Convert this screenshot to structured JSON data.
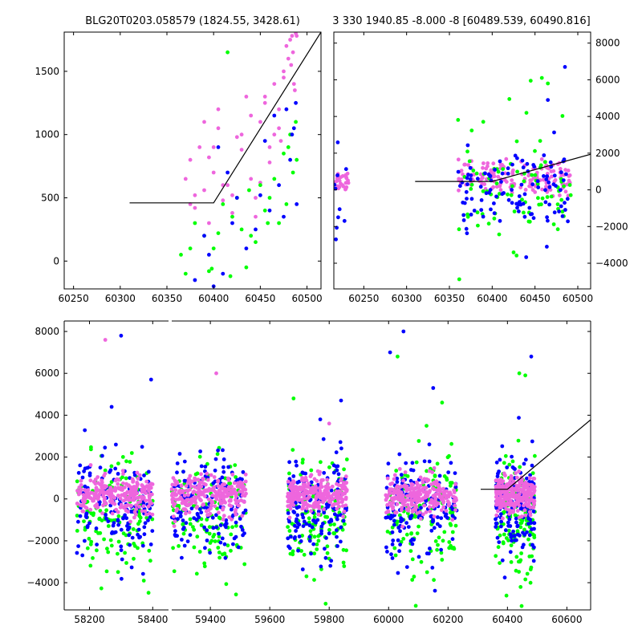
{
  "titles": {
    "left": "BLG20T0203.058579 (1824.55, 3428.61)",
    "right": "3 330 1940.85 -8.000 -8 [60489.539, 60490.816]"
  },
  "colors": {
    "series_green": "#00ff00",
    "series_blue": "#0000ff",
    "series_magenta": "#ee66dd",
    "model_line": "#000000"
  },
  "chart_data": [
    {
      "type": "scatter",
      "panel": "top-left",
      "xlim": [
        60240,
        60515
      ],
      "ylim": [
        -220,
        1810
      ],
      "x_ticks": [
        "60250",
        "60300",
        "60350",
        "60400",
        "60450",
        "60500"
      ],
      "y_ticks": [
        "0",
        "500",
        "1000",
        "1500"
      ],
      "y_axis_side": "left",
      "series": [
        {
          "color": "magenta",
          "x": [
            60370,
            60375,
            60380,
            60385,
            60390,
            60395,
            60400,
            60405,
            60410,
            60420,
            60430,
            60440,
            60445,
            60450,
            60455,
            60460,
            60465,
            60470,
            60475,
            60478,
            60480,
            60482,
            60484,
            60486,
            60488,
            60470,
            60460,
            60450,
            60440,
            60430,
            60420,
            60410,
            60400,
            60390,
            60380,
            60375,
            60395,
            60405,
            60415,
            60425,
            60435,
            60445,
            60455,
            60465,
            60475,
            60485,
            60487,
            60489,
            60483,
            60472
          ],
          "y": [
            650,
            800,
            420,
            900,
            560,
            300,
            700,
            1050,
            480,
            380,
            1000,
            650,
            350,
            1100,
            1300,
            900,
            1400,
            1200,
            1500,
            1700,
            1600,
            1750,
            1780,
            1400,
            1800,
            1050,
            780,
            620,
            1150,
            880,
            520,
            600,
            900,
            1100,
            520,
            450,
            820,
            1200,
            600,
            980,
            1300,
            500,
            1250,
            1000,
            1450,
            1650,
            1350,
            1780,
            1550,
            950
          ]
        },
        {
          "color": "green",
          "x": [
            60365,
            60370,
            60380,
            60390,
            60400,
            60410,
            60420,
            60430,
            60440,
            60450,
            60460,
            60470,
            60480,
            60485,
            60488,
            60475,
            60455,
            60435,
            60415,
            60395,
            60375,
            60405,
            60425,
            60445,
            60465,
            60482,
            60489,
            60478,
            60458,
            60438,
            60418,
            60398
          ],
          "y": [
            50,
            -100,
            300,
            200,
            100,
            450,
            350,
            250,
            200,
            600,
            500,
            300,
            900,
            700,
            1100,
            850,
            400,
            -50,
            1650,
            -80,
            100,
            220,
            500,
            150,
            650,
            1000,
            800,
            450,
            300,
            560,
            -120,
            -60
          ]
        },
        {
          "color": "blue",
          "x": [
            60380,
            60395,
            60405,
            60420,
            60435,
            60450,
            60460,
            60470,
            60478,
            60484,
            60488,
            60489,
            60465,
            60445,
            60425,
            60410,
            60400,
            60390,
            60415,
            60455,
            60475,
            60482,
            60486
          ],
          "y": [
            -150,
            50,
            900,
            300,
            100,
            520,
            400,
            600,
            1200,
            1000,
            1250,
            450,
            1150,
            250,
            500,
            -100,
            -200,
            200,
            700,
            950,
            350,
            800,
            1050
          ]
        }
      ],
      "model": {
        "x": [
          60310,
          60400,
          60520
        ],
        "y": [
          460,
          460,
          1810
        ]
      }
    },
    {
      "type": "scatter",
      "panel": "top-right",
      "xlim": [
        60215,
        60515
      ],
      "ylim": [
        -5400,
        8600
      ],
      "x_ticks": [
        "60250",
        "60300",
        "60350",
        "60400",
        "60450",
        "60500"
      ],
      "y_ticks": [
        "-4000",
        "-2000",
        "0",
        "2000",
        "4000",
        "6000",
        "8000"
      ],
      "y_axis_side": "right",
      "series": [
        {
          "color": "magenta",
          "clusters": [
            {
              "xmin": 60215,
              "xmax": 60232,
              "mean": 500,
              "sd": 300,
              "n": 25
            },
            {
              "xmin": 60360,
              "xmax": 60492,
              "mean": 700,
              "sd": 450,
              "n": 160
            }
          ]
        },
        {
          "color": "green",
          "clusters": [
            {
              "xmin": 60360,
              "xmax": 60492,
              "mean": 0,
              "sd": 1400,
              "n": 80
            }
          ]
        },
        {
          "color": "blue",
          "clusters": [
            {
              "xmin": 60215,
              "xmax": 60232,
              "mean": -800,
              "sd": 1500,
              "n": 10
            },
            {
              "xmin": 60360,
              "xmax": 60492,
              "mean": -200,
              "sd": 1200,
              "n": 110
            }
          ]
        }
      ],
      "outliers": [
        {
          "color": "green",
          "x": [
            60420,
            60445,
            60458,
            60465,
            60440
          ],
          "y": [
            4950,
            5950,
            6100,
            5800,
            4200
          ]
        },
        {
          "color": "blue",
          "x": [
            60485,
            60465
          ],
          "y": [
            6700,
            4900
          ]
        }
      ],
      "model": {
        "x": [
          60310,
          60400,
          60520
        ],
        "y": [
          460,
          460,
          1940
        ]
      }
    },
    {
      "type": "scatter",
      "panel": "bottom",
      "xlim": [
        58120,
        60680
      ],
      "ylim": [
        -5300,
        8500
      ],
      "x_ticks": [
        "58200",
        "58400",
        "59400",
        "59600",
        "59800",
        "60000",
        "60200",
        "60400",
        "60600"
      ],
      "y_ticks": [
        "-4000",
        "-2000",
        "0",
        "2000",
        "4000",
        "6000",
        "8000"
      ],
      "y_axis_side": "left",
      "seasons": [
        {
          "xmin": 58160,
          "xmax": 58400
        },
        {
          "xmin": 59270,
          "xmax": 59520
        },
        {
          "xmin": 59660,
          "xmax": 59860
        },
        {
          "xmin": 59990,
          "xmax": 60230
        },
        {
          "xmin": 60360,
          "xmax": 60492
        }
      ],
      "series": [
        {
          "color": "green",
          "mean": -900,
          "sd": 1400,
          "n_per_season": 130
        },
        {
          "color": "blue",
          "mean": -400,
          "sd": 1200,
          "n_per_season": 150
        },
        {
          "color": "magenta",
          "mean": 200,
          "sd": 450,
          "n_per_season": 260
        }
      ],
      "outliers": [
        {
          "color": "blue",
          "x": [
            58300,
            58270,
            58395,
            59840,
            59770,
            60050,
            60150,
            60005,
            60480
          ],
          "y": [
            7800,
            4400,
            5700,
            4700,
            3800,
            8000,
            5300,
            7000,
            6800
          ]
        },
        {
          "color": "magenta",
          "x": [
            58250,
            59420,
            59800
          ],
          "y": [
            7600,
            6000,
            3600
          ]
        },
        {
          "color": "green",
          "x": [
            59680,
            60030,
            60180,
            60440,
            60460
          ],
          "y": [
            4800,
            6800,
            4600,
            6000,
            5900
          ]
        }
      ],
      "model": {
        "x": [
          60310,
          60400,
          60680
        ],
        "y": [
          460,
          460,
          3780
        ]
      }
    }
  ]
}
